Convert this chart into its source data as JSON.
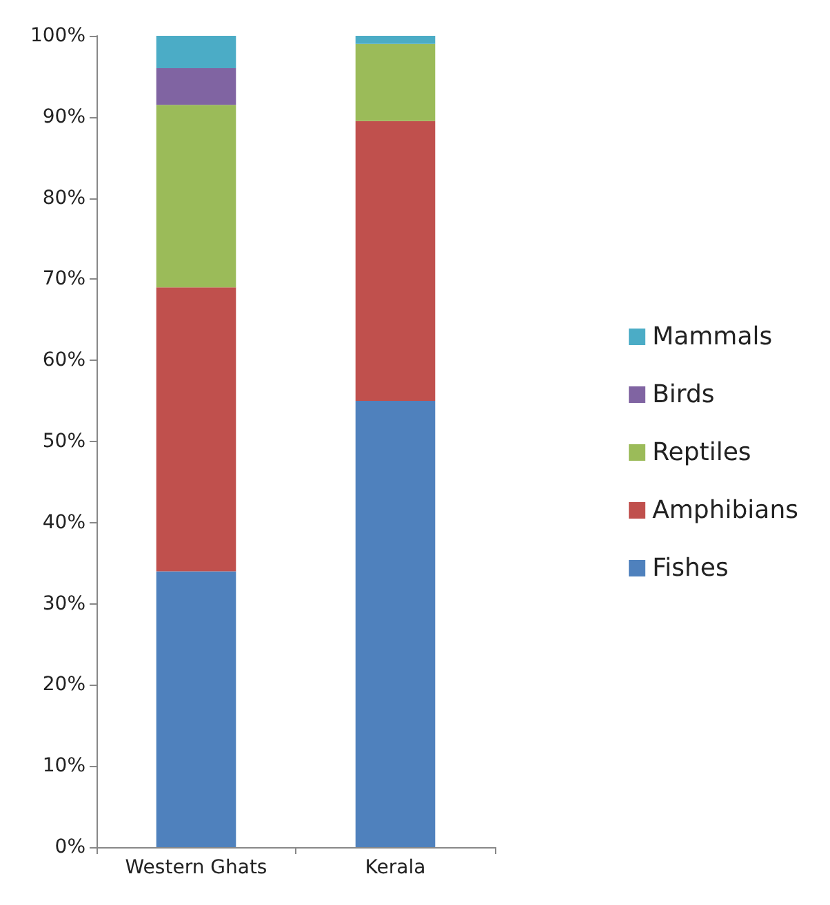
{
  "chart_data": {
    "type": "bar",
    "stacked": true,
    "categories": [
      "Western Ghats",
      "Kerala"
    ],
    "series": [
      {
        "name": "Fishes",
        "color": "#4f81bd",
        "values": [
          34,
          55
        ]
      },
      {
        "name": "Amphibians",
        "color": "#c0504d",
        "values": [
          35,
          34.5
        ]
      },
      {
        "name": "Reptiles",
        "color": "#9bbb59",
        "values": [
          22.5,
          9.5
        ]
      },
      {
        "name": "Birds",
        "color": "#8064a2",
        "values": [
          4.5,
          0
        ]
      },
      {
        "name": "Mammals",
        "color": "#4bacc6",
        "values": [
          4,
          1
        ]
      }
    ],
    "ylim": [
      0,
      100
    ],
    "yticks": [
      {
        "value": 0,
        "label": "0%"
      },
      {
        "value": 10,
        "label": "10%"
      },
      {
        "value": 20,
        "label": "20%"
      },
      {
        "value": 30,
        "label": "30%"
      },
      {
        "value": 40,
        "label": "40%"
      },
      {
        "value": 50,
        "label": "50%"
      },
      {
        "value": 60,
        "label": "60%"
      },
      {
        "value": 70,
        "label": "70%"
      },
      {
        "value": 80,
        "label": "80%"
      },
      {
        "value": 90,
        "label": "90%"
      },
      {
        "value": 100,
        "label": "100%"
      }
    ],
    "grid": false,
    "legend": "right"
  }
}
